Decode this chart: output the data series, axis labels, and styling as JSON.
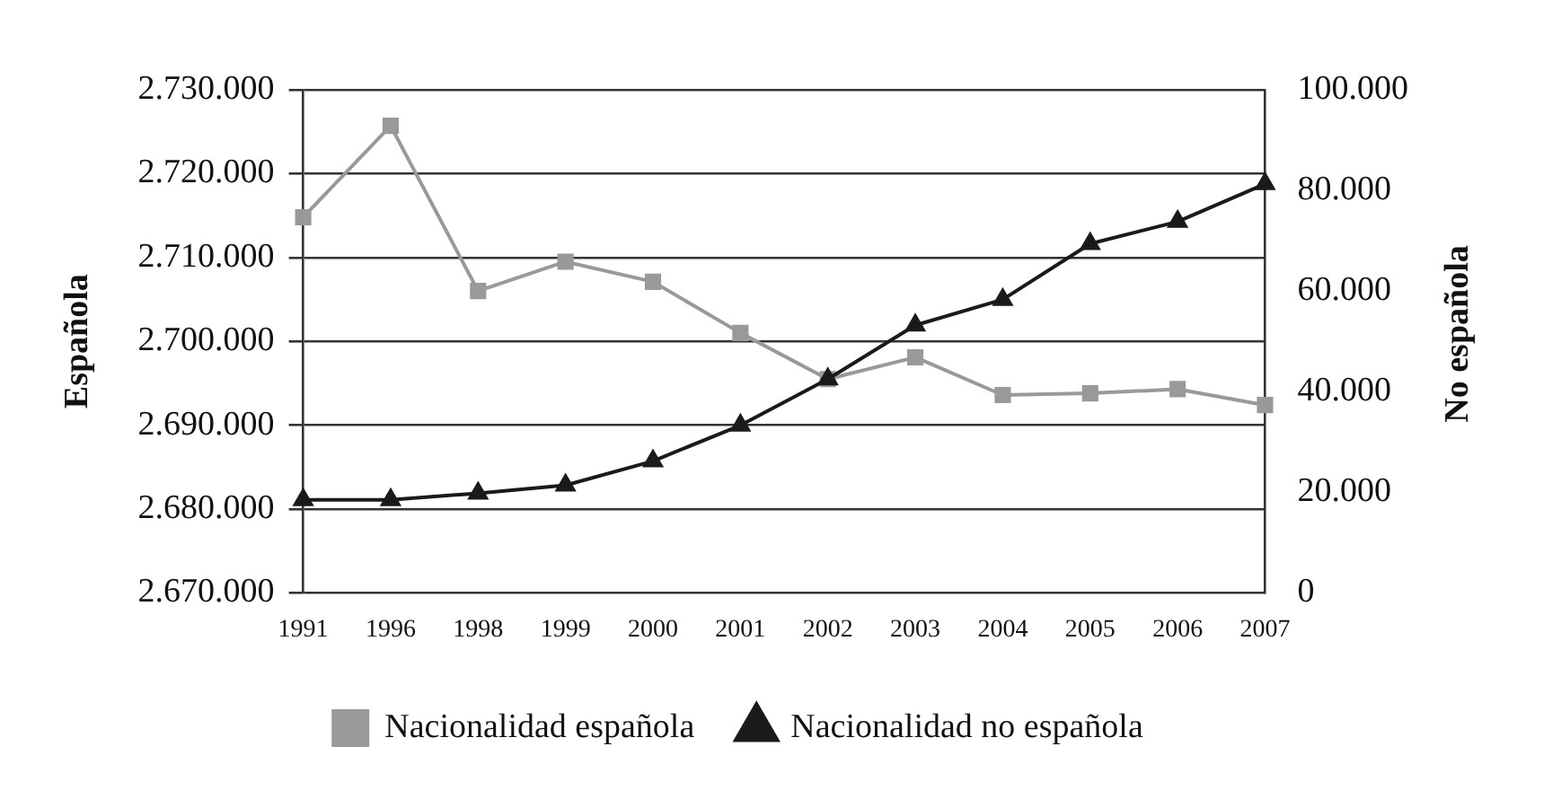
{
  "chart_data": {
    "type": "line",
    "categories": [
      "1991",
      "1996",
      "1998",
      "1999",
      "2000",
      "2001",
      "2002",
      "2003",
      "2004",
      "2005",
      "2006",
      "2007"
    ],
    "series": [
      {
        "name": "Nacionalidad española",
        "color": "#999999",
        "marker": "square",
        "values": [
          2714800,
          2725700,
          2706000,
          2709500,
          2707100,
          2701000,
          2695500,
          2698100,
          2693600,
          2693800,
          2694300,
          2692400
        ]
      },
      {
        "name": "Nacionalidad no española",
        "color": "#1a1a1a",
        "marker": "triangle",
        "axis": "y2",
        "values": [
          18500,
          18500,
          19800,
          21400,
          26200,
          33300,
          42500,
          53200,
          58300,
          69400,
          73800,
          81300
        ]
      }
    ],
    "ylabel": "Española",
    "y2label": "No española",
    "ylim": [
      2670000,
      2730000
    ],
    "yticks": [
      {
        "value": 2670000,
        "label": "2.670.000"
      },
      {
        "value": 2680000,
        "label": "2.680.000"
      },
      {
        "value": 2690000,
        "label": "2.690.000"
      },
      {
        "value": 2700000,
        "label": "2.700.000"
      },
      {
        "value": 2710000,
        "label": "2.710.000"
      },
      {
        "value": 2720000,
        "label": "2.720.000"
      },
      {
        "value": 2730000,
        "label": "2.730.000"
      }
    ],
    "y2lim": [
      0,
      100000
    ],
    "y2ticks": [
      0,
      {
        "value": 20000,
        "label": "20.000"
      },
      {
        "value": 40000,
        "label": "40.000"
      },
      {
        "value": 60000,
        "label": "60.000"
      },
      {
        "value": 80000,
        "label": "80.000"
      },
      {
        "value": 100000,
        "label": "100.000"
      }
    ],
    "grid": "y",
    "legend": "bottom",
    "line_style": "solid"
  }
}
